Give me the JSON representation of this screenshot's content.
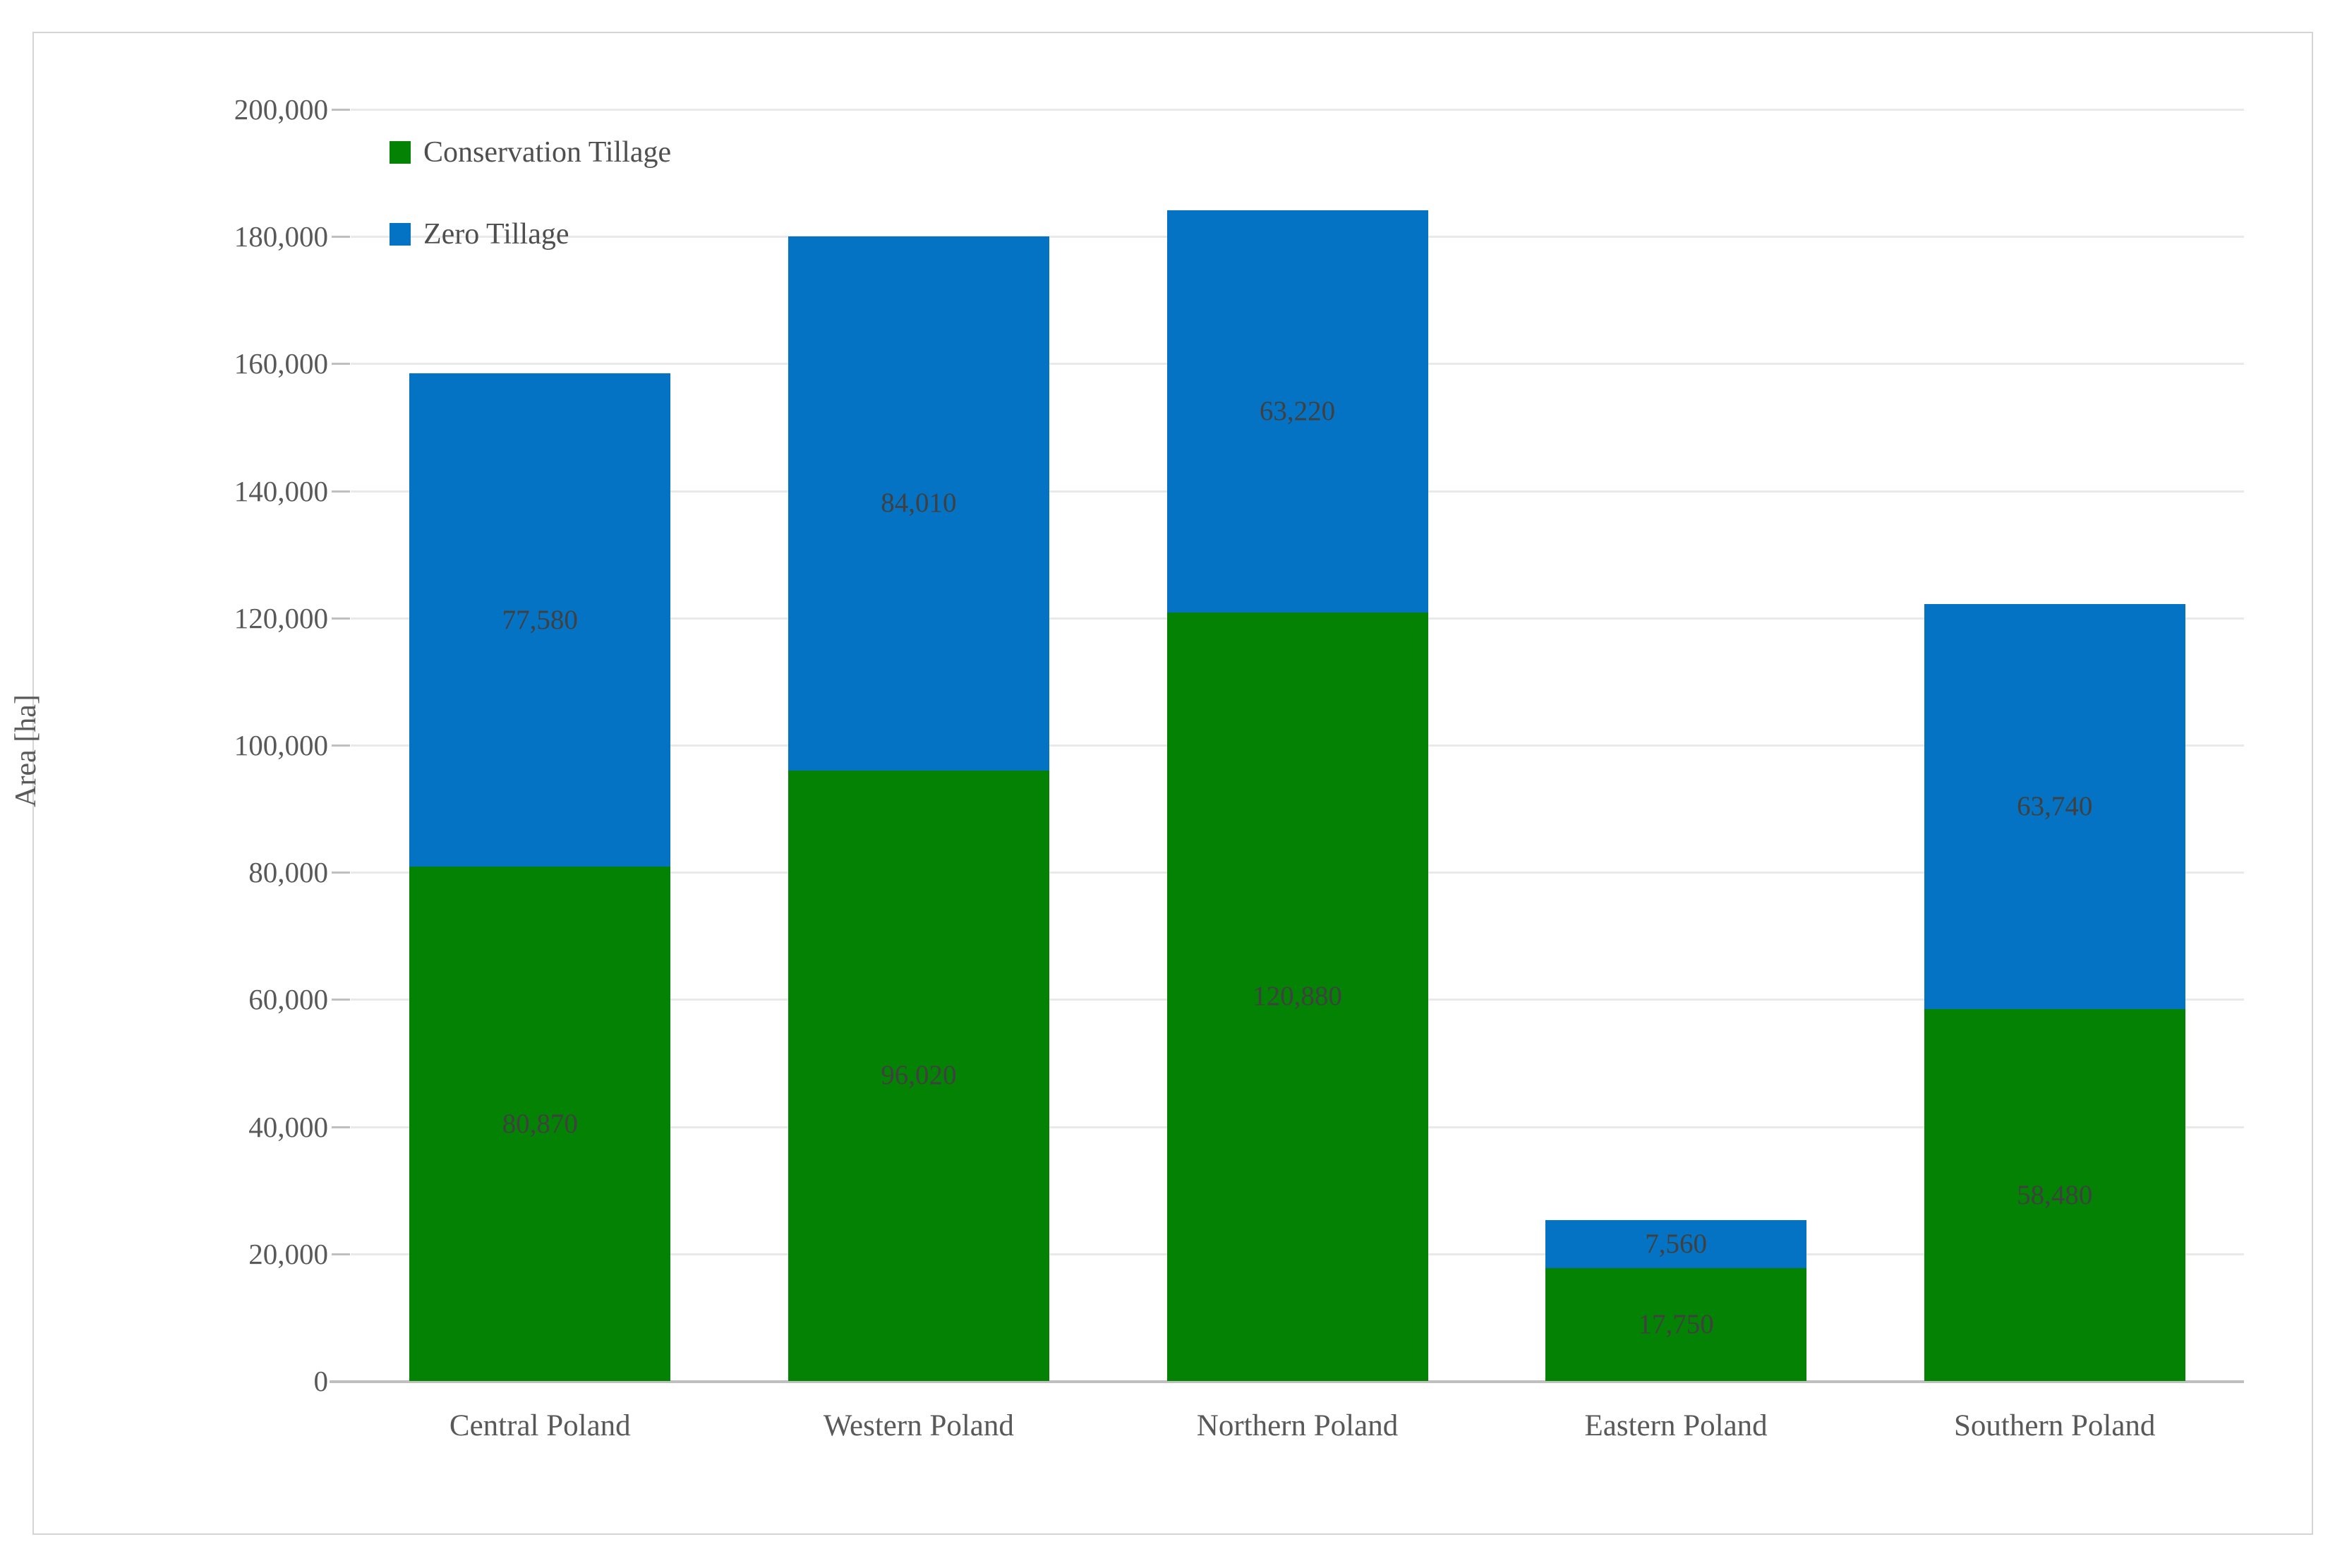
{
  "chart": {
    "y_axis_title": "Area [ha]"
  },
  "chart_data": {
    "type": "bar",
    "stacked": true,
    "title": "",
    "categories": [
      "Central Poland",
      "Western Poland",
      "Northern Poland",
      "Eastern Poland",
      "Southern Poland"
    ],
    "series": [
      {
        "name": "Conservation Tillage",
        "color": "#038203",
        "values": [
          80870,
          96020,
          120880,
          17750,
          58480
        ],
        "labels": [
          "80,870",
          "96,020",
          "120,880",
          "17,750",
          "58,480"
        ]
      },
      {
        "name": "Zero Tillage",
        "color": "#0473c4",
        "values": [
          77580,
          84010,
          63220,
          7560,
          63740
        ],
        "labels": [
          "77,580",
          "84,010",
          "63,220",
          "7,560",
          "63,740"
        ]
      }
    ],
    "xlabel": "",
    "ylabel": "Area [ha]",
    "ylim": [
      0,
      200000
    ],
    "ytick_step": 20000,
    "ytick_labels": [
      "0",
      "20,000",
      "40,000",
      "60,000",
      "80,000",
      "100,000",
      "120,000",
      "140,000",
      "160,000",
      "180,000",
      "200,000"
    ],
    "grid": true,
    "legend_position": "top-left-inside",
    "colors": {
      "gridline": "#e9e9e9",
      "axis_line": "#bfbfbf",
      "axis_text": "#595959",
      "data_label_text": "#404040",
      "frame_border": "#d5d5d5"
    }
  }
}
